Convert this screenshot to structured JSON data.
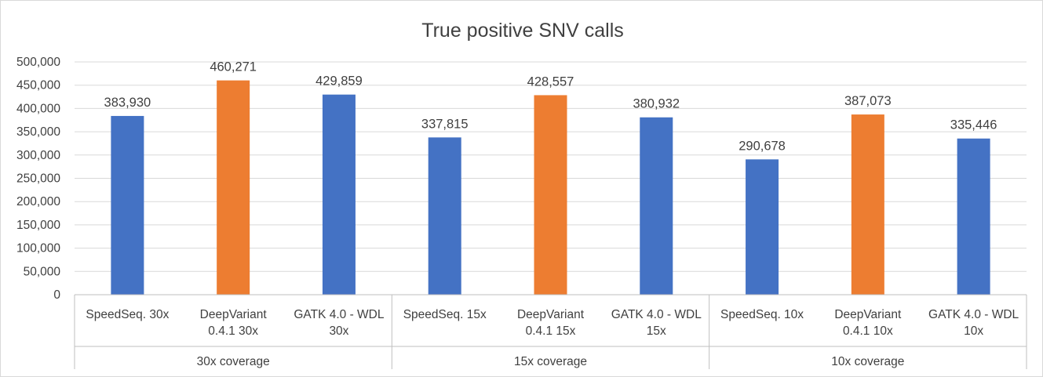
{
  "chart_data": {
    "type": "bar",
    "title": "True positive SNV calls",
    "xlabel": "",
    "ylabel": "",
    "ylim": [
      0,
      500000
    ],
    "y_ticks": [
      0,
      50000,
      100000,
      150000,
      200000,
      250000,
      300000,
      350000,
      400000,
      450000,
      500000
    ],
    "y_tick_labels": [
      "0",
      "50,000",
      "100,000",
      "150,000",
      "200,000",
      "250,000",
      "300,000",
      "350,000",
      "400,000",
      "450,000",
      "500,000"
    ],
    "grid": true,
    "legend": "none",
    "groups": [
      {
        "label": "30x coverage",
        "bars": [
          {
            "category": [
              "SpeedSeq. 30x"
            ],
            "value": 383930,
            "value_label": "383,930",
            "color": "#4472C4"
          },
          {
            "category": [
              "DeepVariant",
              "0.4.1 30x"
            ],
            "value": 460271,
            "value_label": "460,271",
            "color": "#ED7D31"
          },
          {
            "category": [
              "GATK 4.0 - WDL",
              "30x"
            ],
            "value": 429859,
            "value_label": "429,859",
            "color": "#4472C4"
          }
        ]
      },
      {
        "label": "15x coverage",
        "bars": [
          {
            "category": [
              "SpeedSeq. 15x"
            ],
            "value": 337815,
            "value_label": "337,815",
            "color": "#4472C4"
          },
          {
            "category": [
              "DeepVariant",
              "0.4.1 15x"
            ],
            "value": 428557,
            "value_label": "428,557",
            "color": "#ED7D31"
          },
          {
            "category": [
              "GATK 4.0 - WDL",
              "15x"
            ],
            "value": 380932,
            "value_label": "380,932",
            "color": "#4472C4"
          }
        ]
      },
      {
        "label": "10x coverage",
        "bars": [
          {
            "category": [
              "SpeedSeq. 10x"
            ],
            "value": 290678,
            "value_label": "290,678",
            "color": "#4472C4"
          },
          {
            "category": [
              "DeepVariant",
              "0.4.1 10x"
            ],
            "value": 387073,
            "value_label": "387,073",
            "color": "#ED7D31"
          },
          {
            "category": [
              "GATK 4.0 - WDL",
              "10x"
            ],
            "value": 335446,
            "value_label": "335,446",
            "color": "#4472C4"
          }
        ]
      }
    ],
    "colors": {
      "gridline": "#d9d9d9",
      "axis": "#bfbfbf",
      "text": "#404040"
    }
  }
}
